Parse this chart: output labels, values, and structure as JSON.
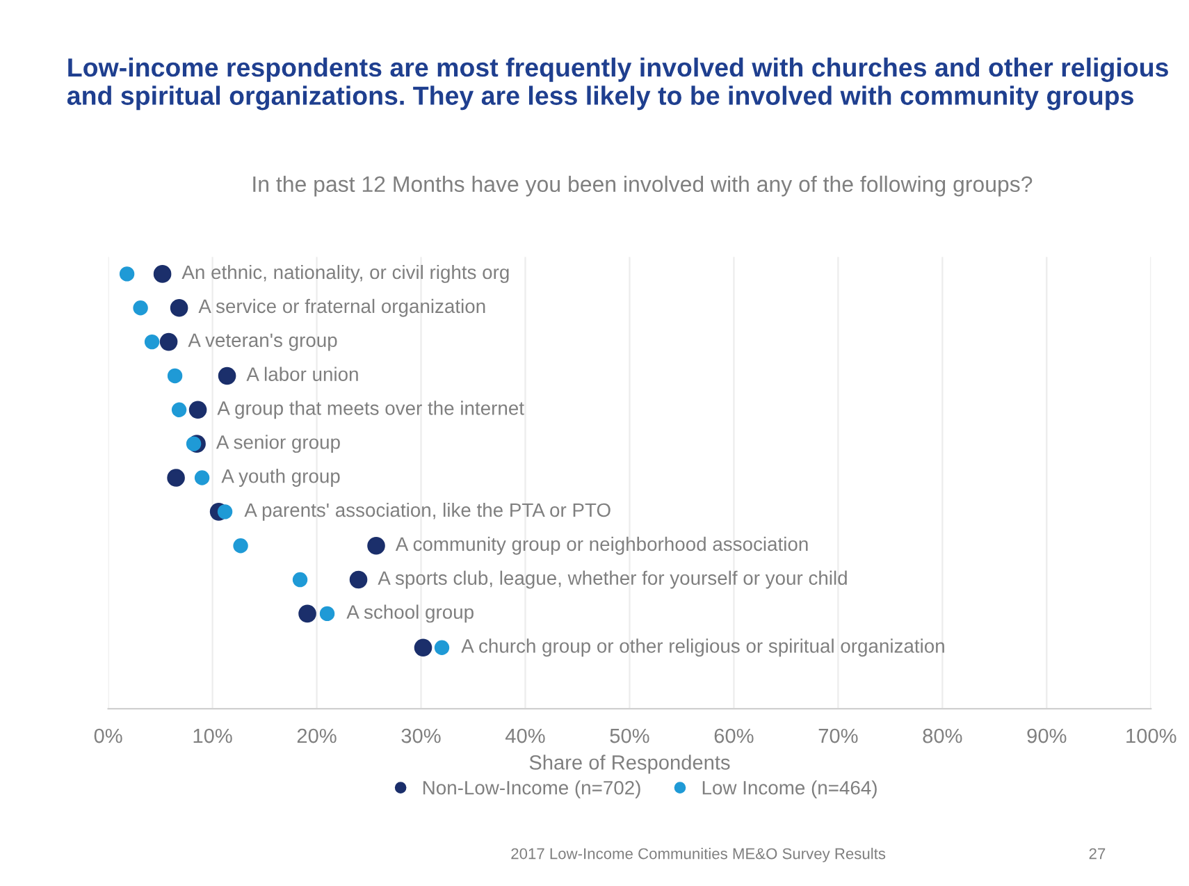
{
  "chart_data": {
    "type": "scatter",
    "orientation": "horizontal",
    "title": "Low-income respondents are most frequently involved with churches and other religious and spiritual organizations. They are less likely to be involved with community groups",
    "subtitle": "In the past 12 Months have you been involved with any of the following groups?",
    "xlabel": "Share of Respondents",
    "categories": [
      "An ethnic, nationality, or civil rights org",
      "A service or fraternal organization",
      "A veteran's group",
      "A labor union",
      "A group that meets over the internet",
      "A senior group",
      "A youth group",
      "A parents' association, like the PTA or PTO",
      "A community group or neighborhood association",
      "A sports club, league, whether for yourself or your child",
      "A school group",
      "A church group or other religious or spiritual organization"
    ],
    "series": [
      {
        "name": "Non-Low-Income (n=702)",
        "color": "#1b2f6b",
        "values": [
          5.2,
          6.8,
          5.8,
          11.4,
          8.6,
          8.5,
          6.5,
          10.6,
          25.7,
          24.0,
          19.1,
          30.2
        ]
      },
      {
        "name": "Low Income (n=464)",
        "color": "#1f9ad6",
        "values": [
          1.8,
          3.1,
          4.2,
          6.4,
          6.8,
          8.2,
          9.0,
          11.2,
          12.7,
          18.4,
          21.0,
          32.0
        ]
      }
    ],
    "xlim": [
      0,
      100
    ],
    "xticks": [
      {
        "value": 0,
        "label": "0%"
      },
      {
        "value": 10,
        "label": "10%"
      },
      {
        "value": 20,
        "label": "20%"
      },
      {
        "value": 30,
        "label": "30%"
      },
      {
        "value": 40,
        "label": "40%"
      },
      {
        "value": 50,
        "label": "50%"
      },
      {
        "value": 60,
        "label": "60%"
      },
      {
        "value": 70,
        "label": "70%"
      },
      {
        "value": 80,
        "label": "80%"
      },
      {
        "value": 90,
        "label": "90%"
      },
      {
        "value": 100,
        "label": "100%"
      }
    ],
    "grid": "x",
    "legend": "bottom",
    "marker": "circle",
    "annotations": [
      "2017 Low-Income Communities ME&O Survey Results",
      "27"
    ]
  }
}
